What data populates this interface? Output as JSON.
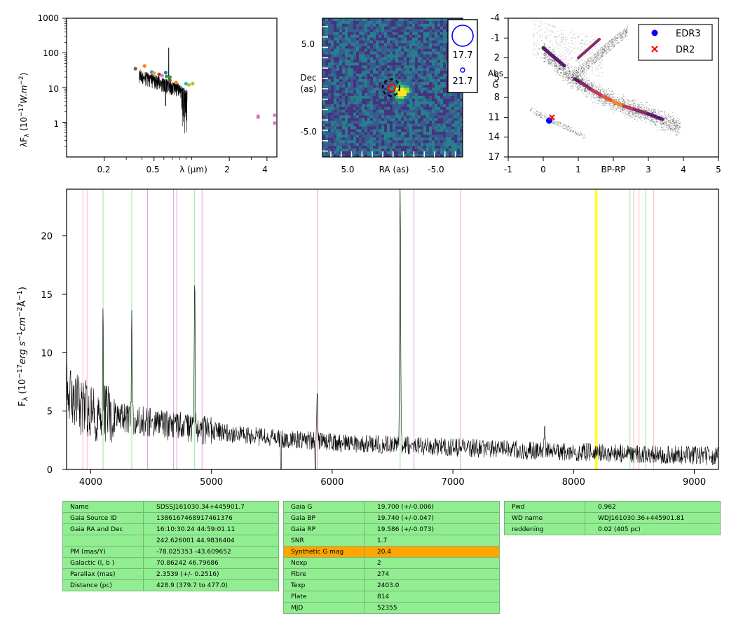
{
  "sed": {
    "ylabel": "λF",
    "ylabel_sub": "λ",
    "ylabel_units": "(10",
    "ylabel_exp1": "−17",
    "ylabel_units2": "W.m",
    "ylabel_exp2": "−2",
    "ylabel_close": ")",
    "xlabel": "λ (μm)",
    "yticks": [
      "1000",
      "100",
      "10",
      "1"
    ],
    "xticks": [
      "0.2",
      "0.5",
      "2",
      "4"
    ]
  },
  "image": {
    "xlabel": "RA (as)",
    "ylabel_1": "Dec",
    "ylabel_2": "(as)",
    "xticks": [
      "5.0",
      "-5.0"
    ],
    "yticks": [
      "5.0",
      "-5.0"
    ],
    "legend": [
      "17.7",
      "21.7"
    ]
  },
  "hrd": {
    "xlabel": "BP-RP",
    "ylabel_1": "Abs",
    "ylabel_2": "G",
    "xticks": [
      "-1",
      "0",
      "1",
      "3",
      "4",
      "5"
    ],
    "yticks": [
      "-4",
      "-1",
      "2",
      "5",
      "8",
      "11",
      "14",
      "17"
    ],
    "legend": [
      {
        "label": "EDR3",
        "color": "#0000ff",
        "marker": "dot"
      },
      {
        "label": "DR2",
        "color": "#ff0000",
        "marker": "x"
      }
    ]
  },
  "chart_data": [
    {
      "type": "scatter",
      "name": "SED",
      "xscale": "log",
      "yscale": "log",
      "xlim": [
        0.1,
        4.8
      ],
      "ylim": [
        0.1,
        1000
      ],
      "points": [
        {
          "x": 0.355,
          "y": 35,
          "color": "#8c564b"
        },
        {
          "x": 0.42,
          "y": 42,
          "color": "#ff7f0e"
        },
        {
          "x": 0.48,
          "y": 28,
          "color": "#9467bd"
        },
        {
          "x": 0.5,
          "y": 26,
          "color": "#bcbd22"
        },
        {
          "x": 0.55,
          "y": 24,
          "color": "#d62728"
        },
        {
          "x": 0.58,
          "y": 22,
          "color": "#e377c2"
        },
        {
          "x": 0.62,
          "y": 27,
          "color": "#1f77b4"
        },
        {
          "x": 0.63,
          "y": 21,
          "color": "#2ca02c"
        },
        {
          "x": 0.67,
          "y": 20,
          "color": "#2ca02c"
        },
        {
          "x": 0.67,
          "y": 16,
          "color": "#8c564b"
        },
        {
          "x": 0.75,
          "y": 14,
          "color": "#ff7f0e"
        },
        {
          "x": 0.9,
          "y": 13,
          "color": "#17becf"
        },
        {
          "x": 0.95,
          "y": 12,
          "color": "#bcbd22"
        },
        {
          "x": 1.02,
          "y": 13,
          "color": "#bcbd22"
        },
        {
          "x": 3.4,
          "y": 1.5,
          "color": "#e377c2"
        },
        {
          "x": 3.4,
          "y": 1.4,
          "color": "#e377c2"
        },
        {
          "x": 4.6,
          "y": 1.6,
          "color": "#e377c2"
        },
        {
          "x": 4.6,
          "y": 0.95,
          "color": "#e377c2"
        }
      ]
    },
    {
      "type": "scatter",
      "name": "HR diagram",
      "xlim": [
        -1,
        5
      ],
      "ylim": [
        17,
        -4
      ],
      "points": [
        {
          "x": 0.17,
          "y": 11.5,
          "label": "EDR3"
        },
        {
          "x": 0.25,
          "y": 11.0,
          "label": "DR2"
        }
      ]
    },
    {
      "type": "line",
      "name": "Spectrum",
      "xlim": [
        3800,
        9200
      ],
      "ylim": [
        0,
        24
      ],
      "xticks": [
        "4000",
        "5000",
        "6000",
        "7000",
        "8000",
        "9000"
      ],
      "yticks": [
        "0",
        "5",
        "10",
        "15",
        "20"
      ],
      "ylabel": "F",
      "ylabel_sub": "λ",
      "ylabel_units": "(10",
      "ylabel_exp1": "−17",
      "ylabel_units2": "erg s",
      "ylabel_exp2": "−1",
      "ylabel_units3": "cm",
      "ylabel_exp3": "−2",
      "ylabel_units4": "Å",
      "ylabel_exp4": "−1",
      "ylabel_close": ")",
      "continuum": [
        [
          3800,
          6.5
        ],
        [
          3900,
          5.5
        ],
        [
          4000,
          5.0
        ],
        [
          4200,
          4.5
        ],
        [
          4400,
          4.2
        ],
        [
          4600,
          3.8
        ],
        [
          4800,
          3.6
        ],
        [
          5000,
          3.3
        ],
        [
          5200,
          3.0
        ],
        [
          5500,
          2.7
        ],
        [
          5800,
          2.5
        ],
        [
          6000,
          2.3
        ],
        [
          6500,
          2.1
        ],
        [
          7000,
          1.9
        ],
        [
          7500,
          1.7
        ],
        [
          8000,
          1.5
        ],
        [
          8500,
          1.35
        ],
        [
          9000,
          1.2
        ],
        [
          9200,
          1.15
        ]
      ],
      "emission": [
        {
          "x": 4102,
          "y": 11.5
        },
        {
          "x": 4340,
          "y": 12.5
        },
        {
          "x": 4861,
          "y": 17.4
        },
        {
          "x": 5876,
          "y": 7.3
        },
        {
          "x": 6563,
          "y": 24.0
        },
        {
          "x": 7760,
          "y": 3.8
        }
      ],
      "vlines": [
        {
          "x": 3935,
          "color": "#ffb6c1"
        },
        {
          "x": 3970,
          "color": "#ffb6c1"
        },
        {
          "x": 4102,
          "color": "#90ee90"
        },
        {
          "x": 4340,
          "color": "#90ee90"
        },
        {
          "x": 4471,
          "color": "#dda0dd"
        },
        {
          "x": 4686,
          "color": "#dda0dd"
        },
        {
          "x": 4713,
          "color": "#dda0dd"
        },
        {
          "x": 4861,
          "color": "#90ee90"
        },
        {
          "x": 4922,
          "color": "#dda0dd"
        },
        {
          "x": 5876,
          "color": "#dda0dd"
        },
        {
          "x": 6563,
          "color": "#90ee90"
        },
        {
          "x": 6678,
          "color": "#dda0dd"
        },
        {
          "x": 7065,
          "color": "#dda0dd"
        },
        {
          "x": 8183,
          "color": "#ffff00"
        },
        {
          "x": 8194,
          "color": "#ffff00"
        },
        {
          "x": 8467,
          "color": "#90ee90"
        },
        {
          "x": 8498,
          "color": "#ffb6c1"
        },
        {
          "x": 8542,
          "color": "#ffb6c1"
        },
        {
          "x": 8598,
          "color": "#90ee90"
        },
        {
          "x": 8662,
          "color": "#ffb6c1"
        }
      ]
    }
  ],
  "tables": {
    "t1": [
      [
        "Name",
        "SDSSJ161030.34+445901.7"
      ],
      [
        "Gaia Source ID",
        "1386167468917461376"
      ],
      [
        "Gaia RA and Dec",
        "16:10:30.24    44:59:01.11"
      ],
      [
        "",
        "242.626001    44.9836404"
      ],
      [
        "PM (mas/Y)",
        "-78.025353    -43.609652"
      ],
      [
        "Galactic (l, b )",
        "70.86242    46.79686"
      ],
      [
        "Parallax (mas)",
        "2.3539 (+/- 0.2516)"
      ],
      [
        "Distance (pc)",
        "428.9 (379.7 to 477.0)"
      ]
    ],
    "t2": [
      [
        "Gaia G",
        "19.700 (+/-0.006)"
      ],
      [
        "Gaia BP",
        "19.740 (+/-0.047)"
      ],
      [
        "Gaia RP",
        "19.586 (+/-0.073)"
      ],
      [
        "SNR",
        "1.7"
      ],
      [
        "Synthetic G mag",
        "20.4"
      ],
      [
        "Nexp",
        "2"
      ],
      [
        "Fibre",
        "274"
      ],
      [
        "Texp",
        "2403.0"
      ],
      [
        "Plate",
        "814"
      ],
      [
        "MJD",
        "52355"
      ]
    ],
    "t3": [
      [
        "Pwd",
        "0.962"
      ],
      [
        "WD name",
        "WDJ161030.36+445901.81"
      ],
      [
        "reddening",
        "0.02 (405 pc)"
      ]
    ],
    "highlight_color": "#ffa500",
    "cell_color": "#90ee90"
  }
}
